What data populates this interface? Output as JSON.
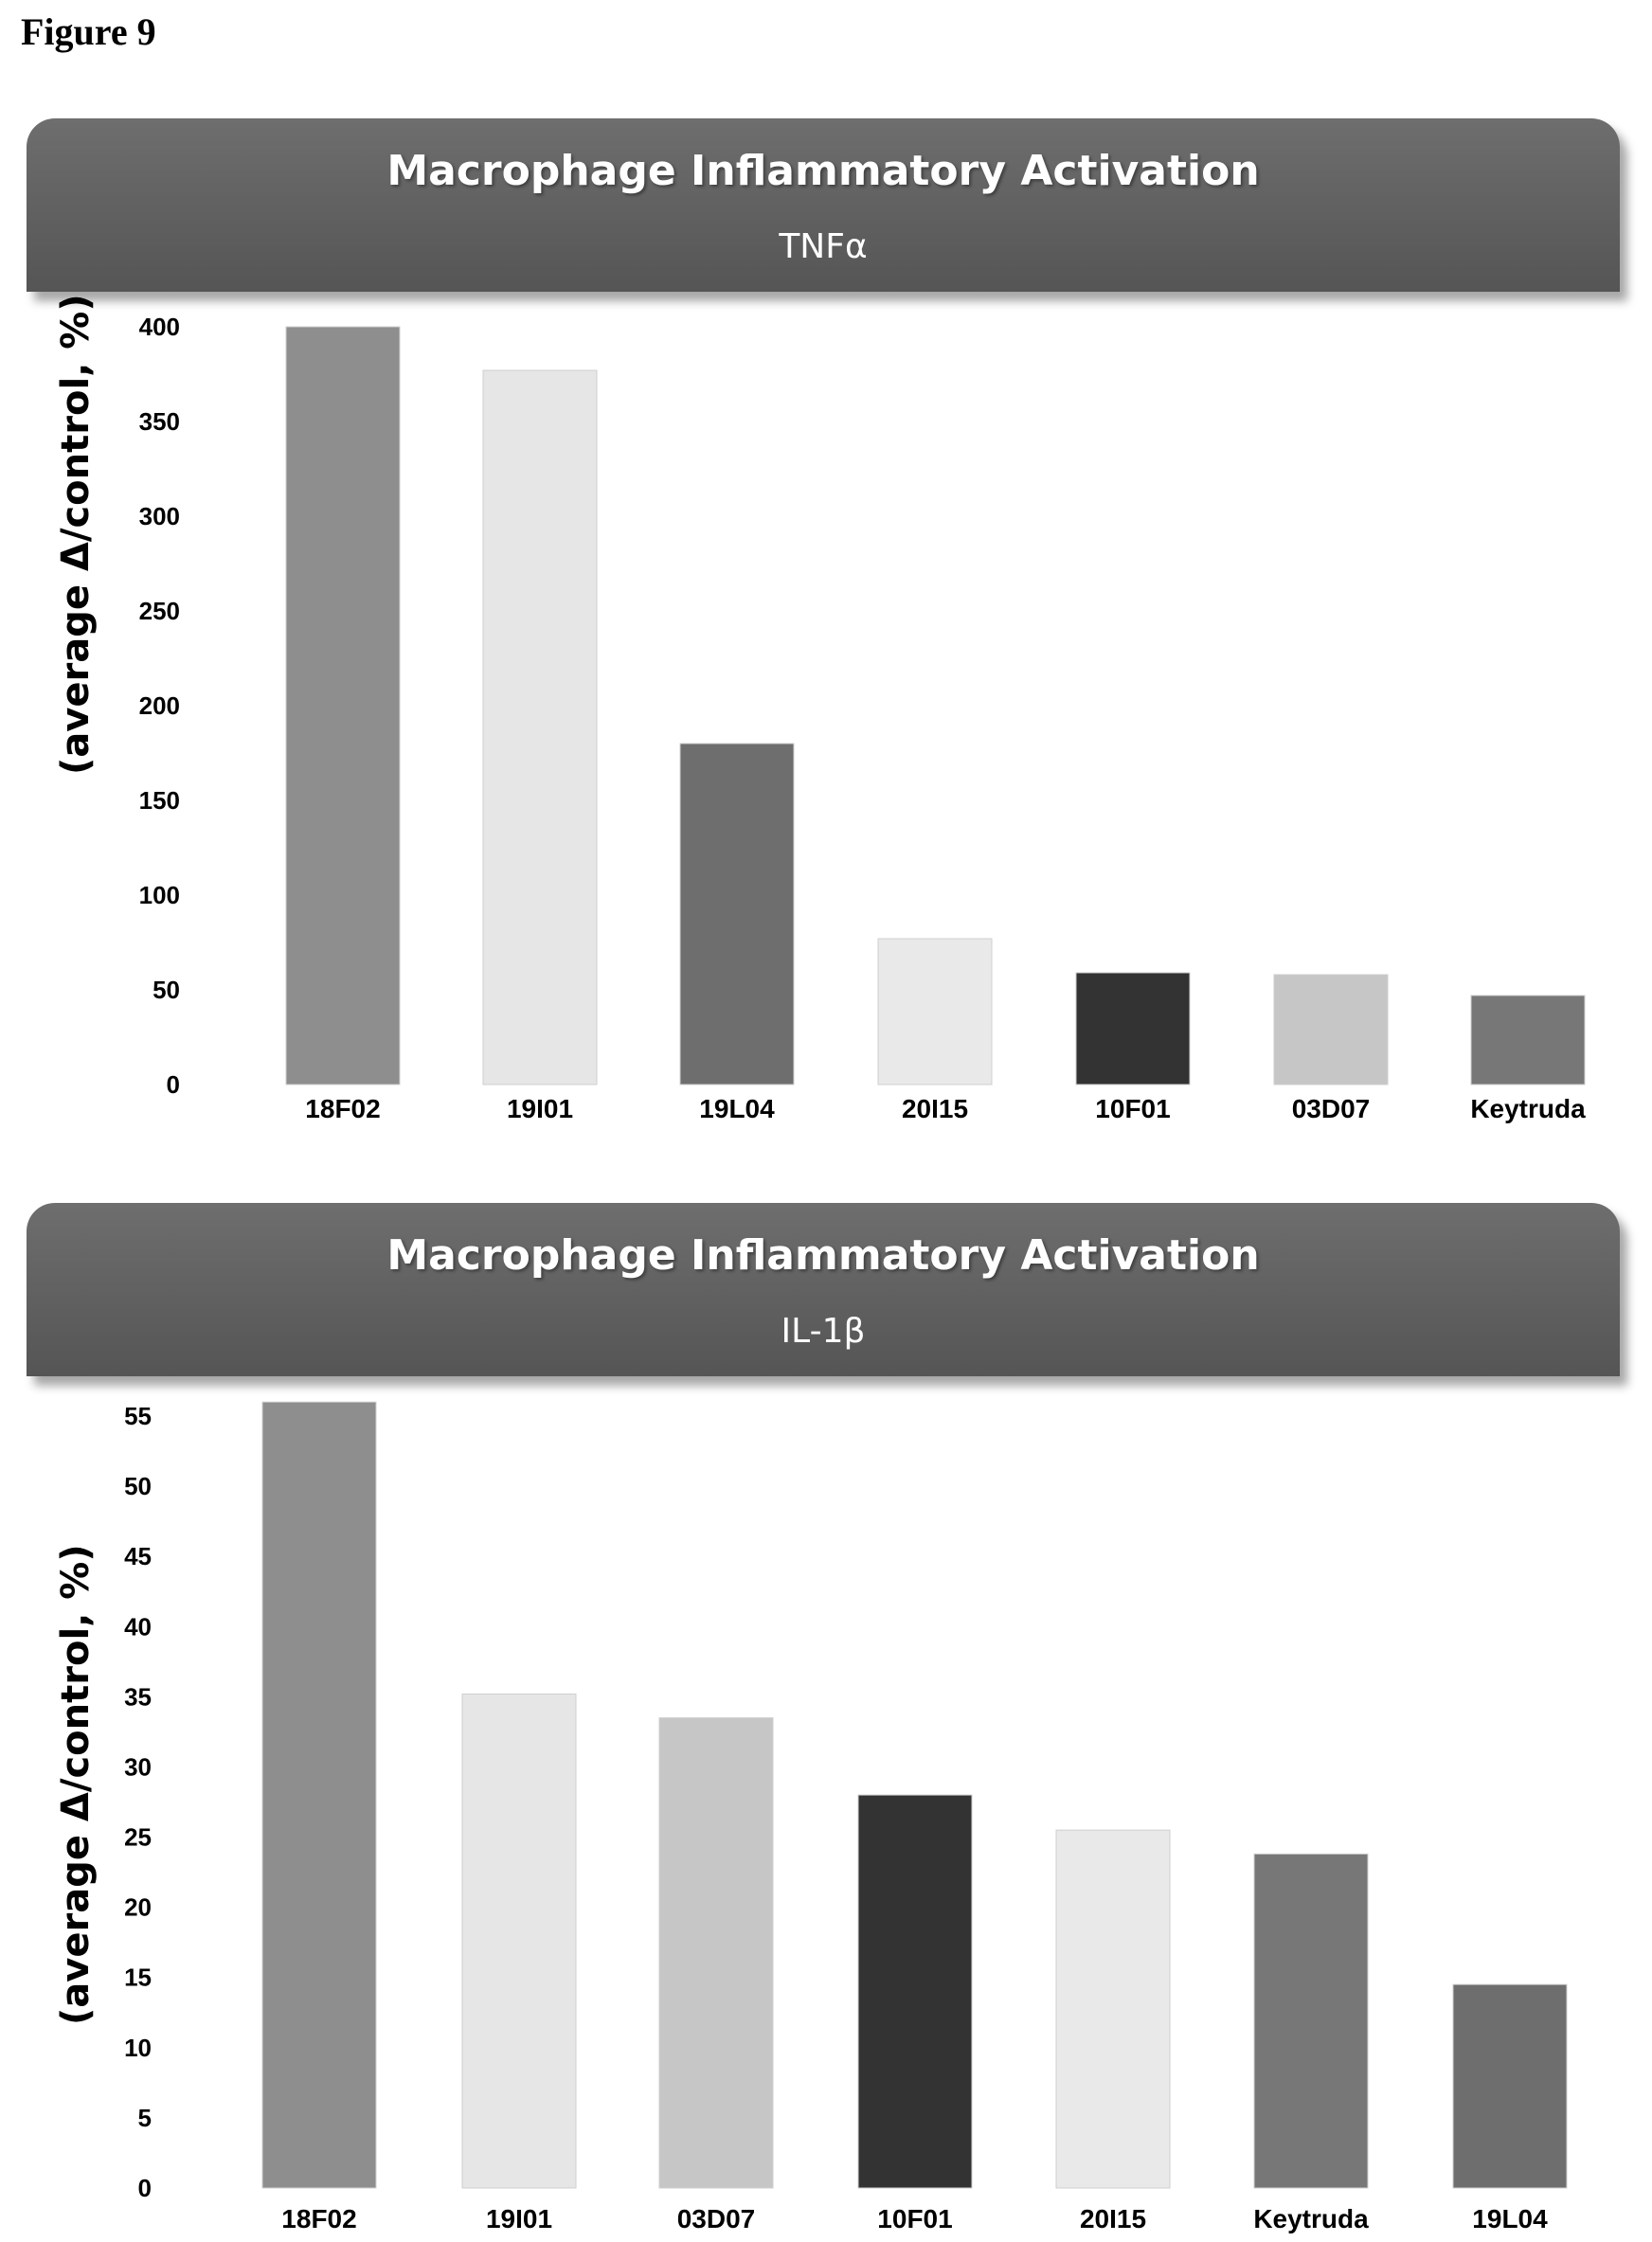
{
  "figure_label": "Figure 9",
  "chart_data": [
    {
      "type": "bar",
      "title": "Macrophage Inflammatory Activation",
      "subtitle": "TNFα",
      "ylabel": "(average Δ/control, %)",
      "xlabel": "",
      "ylim": [
        0,
        400
      ],
      "yticks": [
        "400",
        "350",
        "300",
        "250",
        "200",
        "150",
        "100",
        "50",
        "0"
      ],
      "categories": [
        "18F02",
        "19I01",
        "19L04",
        "20I15",
        "10F01",
        "03D07",
        "Keytruda"
      ],
      "values": [
        400,
        377,
        180,
        77,
        59,
        58,
        47
      ],
      "colors": [
        "#8e8e8e",
        "#e6e6e6",
        "#6e6e6e",
        "#e9e9e9",
        "#333333",
        "#c6c6c6",
        "#777777"
      ],
      "grid": false,
      "legend": "none"
    },
    {
      "type": "bar",
      "title": "Macrophage Inflammatory Activation",
      "subtitle": "IL-1β",
      "ylabel": "(average Δ/control, %)",
      "xlabel": "",
      "ylim": [
        0,
        55
      ],
      "yticks": [
        "55",
        "50",
        "45",
        "40",
        "35",
        "30",
        "25",
        "20",
        "15",
        "10",
        "5",
        "0"
      ],
      "categories": [
        "18F02",
        "19I01",
        "03D07",
        "10F01",
        "20I15",
        "Keytruda",
        "19L04"
      ],
      "values": [
        56,
        35.2,
        33.5,
        28,
        25.5,
        23.8,
        14.5
      ],
      "colors": [
        "#8e8e8e",
        "#e6e6e6",
        "#c6c6c6",
        "#333333",
        "#e9e9e9",
        "#777777",
        "#6e6e6e"
      ],
      "grid": false,
      "legend": "none"
    }
  ]
}
